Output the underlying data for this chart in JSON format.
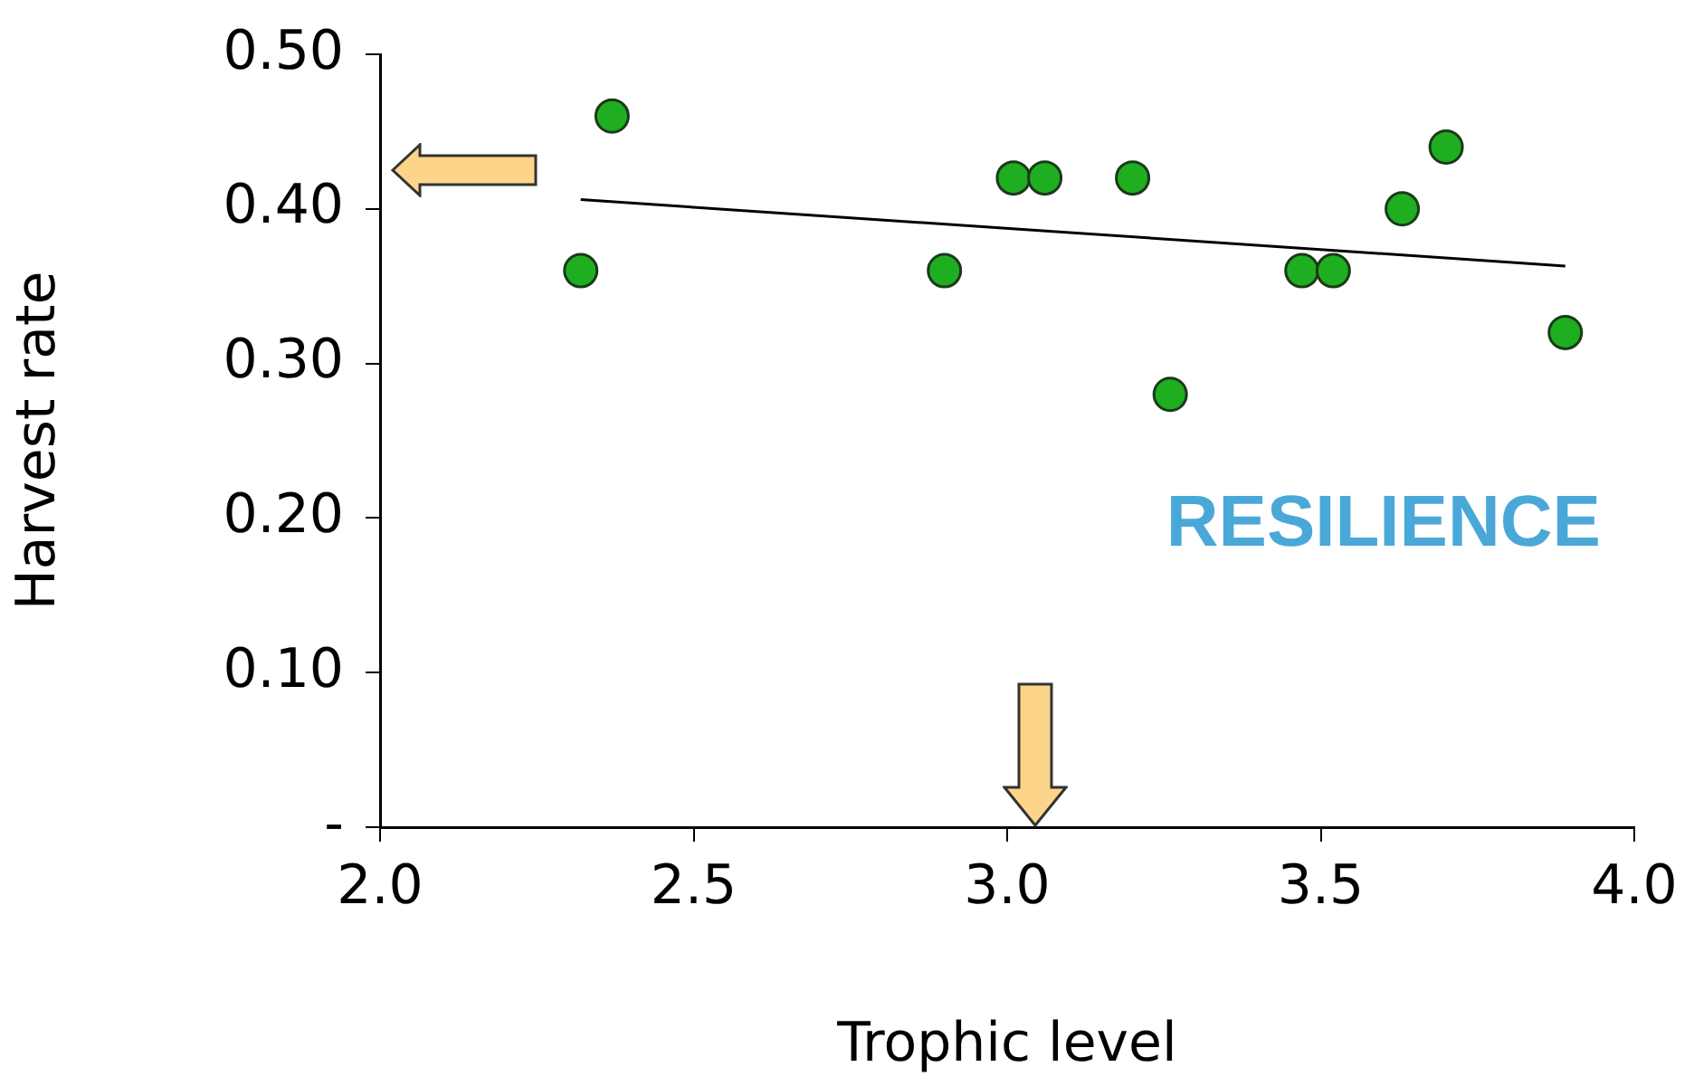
{
  "chart_data": {
    "type": "scatter",
    "xlabel": "Trophic level",
    "ylabel": "Harvest rate",
    "xlim": [
      2.0,
      4.0
    ],
    "xticks": [
      {
        "value": 2,
        "label": "2.0"
      },
      2.5,
      {
        "value": 3,
        "label": "3.0"
      },
      3.5,
      {
        "value": 4,
        "label": "4.0"
      }
    ],
    "ylim": [
      0,
      0.5
    ],
    "yticks": [
      {
        "value": 0,
        "label": "-"
      },
      {
        "value": 0.1,
        "label": "0.10"
      },
      {
        "value": 0.2,
        "label": "0.20"
      },
      {
        "value": 0.3,
        "label": "0.30"
      },
      {
        "value": 0.4,
        "label": "0.40"
      },
      {
        "value": 0.5,
        "label": "0.50"
      }
    ],
    "grid": false,
    "legend": false,
    "marker": "circle",
    "series": [
      {
        "type": "scatter",
        "color": "#1fae1f",
        "x": [
          2.32,
          2.37,
          2.9,
          3.01,
          3.06,
          3.2,
          3.26,
          3.47,
          3.52,
          3.63,
          3.7,
          3.89
        ],
        "values": [
          0.36,
          0.46,
          0.36,
          0.42,
          0.42,
          0.42,
          0.28,
          0.36,
          0.36,
          0.4,
          0.44,
          0.32
        ]
      },
      {
        "type": "line",
        "color": "#000000",
        "marker": "none",
        "x": [
          2.32,
          3.89
        ],
        "values": [
          0.406,
          0.363
        ]
      }
    ],
    "annotations": [
      "RESILIENCE"
    ]
  }
}
